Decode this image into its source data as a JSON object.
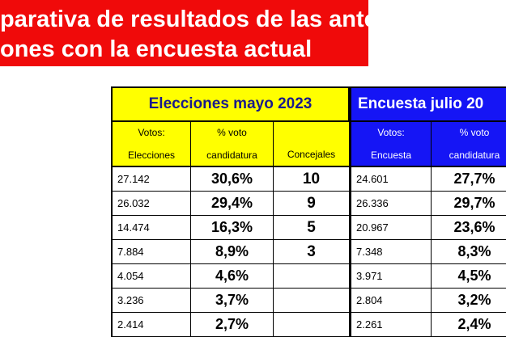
{
  "banner": {
    "lines": [
      "parativa de resultados de las anteriores",
      "ones con la encuesta actual"
    ]
  },
  "table": {
    "groups": [
      "Elecciones mayo 2023",
      "Encuesta julio 20"
    ],
    "subheaders": [
      [
        "Votos:",
        "Elecciones"
      ],
      [
        "% voto",
        "candidatura"
      ],
      [
        "Concejales"
      ],
      [
        "Votos:",
        "Encuesta"
      ],
      [
        "% voto",
        "candidatura"
      ]
    ],
    "rows": [
      [
        "27.142",
        "30,6%",
        "10",
        "24.601",
        "27,7%"
      ],
      [
        "26.032",
        "29,4%",
        "9",
        "26.336",
        "29,7%"
      ],
      [
        "14.474",
        "16,3%",
        "5",
        "20.967",
        "23,6%"
      ],
      [
        "7.884",
        "8,9%",
        "3",
        "7.348",
        "8,3%"
      ],
      [
        "4.054",
        "4,6%",
        null,
        "3.971",
        "4,5%"
      ],
      [
        "3.236",
        "3,7%",
        null,
        "2.804",
        "3,2%"
      ],
      [
        "2.414",
        "2,7%",
        null,
        "2.261",
        "2,4%"
      ]
    ]
  }
}
